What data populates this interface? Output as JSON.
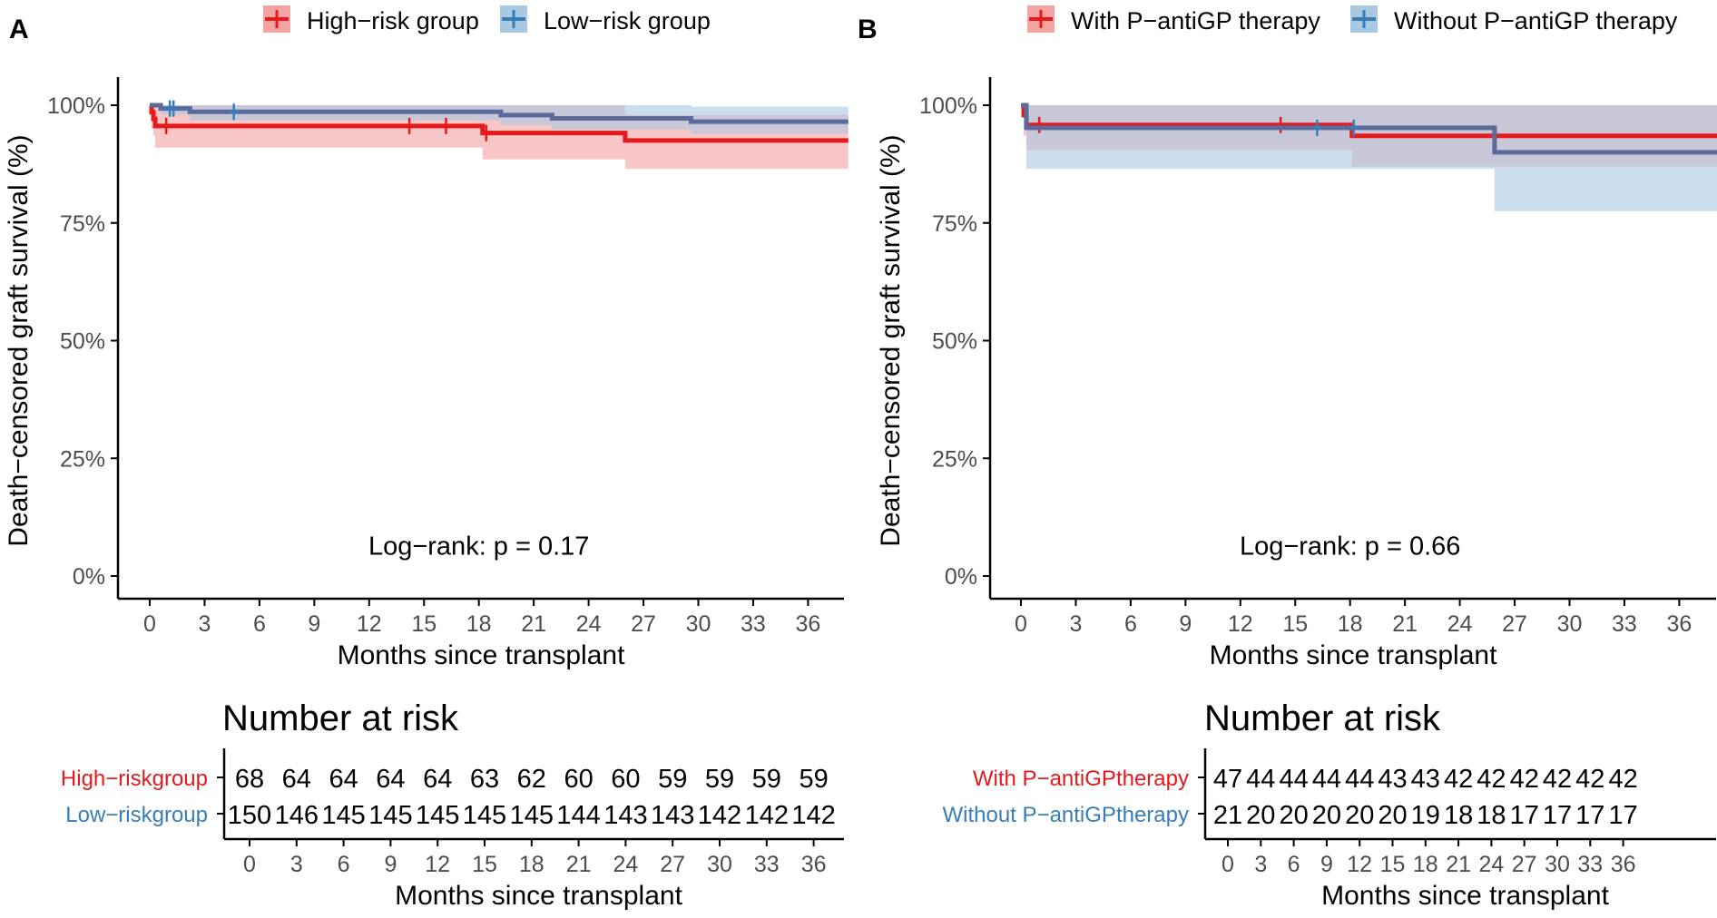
{
  "colors": {
    "group1_line": "#e41a1c",
    "group1_band": "#f4a3a3",
    "group2_line": "#5b6a9b",
    "group2_marker": "#377eb8",
    "group2_band": "#a9c8e2",
    "group2_label": "#377eb8",
    "axis": "#000000",
    "tick_text": "#4d4d4d"
  },
  "chart_data": [
    {
      "panel_label": "A",
      "type": "line",
      "subtype": "kaplan-meier step",
      "legend": [
        "High−risk group",
        "Low−risk group"
      ],
      "legend_position": "top",
      "ylabel": "Death−censored graft survival (%)",
      "xlabel": "Months since transplant",
      "xlim": [
        -2.3,
        38.5
      ],
      "ylim": [
        -0.04,
        1.02
      ],
      "x_ticks": [
        0,
        3,
        6,
        9,
        12,
        15,
        18,
        21,
        24,
        27,
        30,
        33,
        36
      ],
      "x_tick_labels": [
        "0",
        "3",
        "6",
        "9",
        "12",
        "15",
        "18",
        "21",
        "24",
        "27",
        "30",
        "33",
        "36"
      ],
      "y_ticks": [
        0,
        0.25,
        0.5,
        0.75,
        1.0
      ],
      "y_tick_labels": [
        "0%",
        "25%",
        "50%",
        "75%",
        "100%"
      ],
      "annotation": "Log−rank: p = 0.17",
      "annotation_pos": [
        18,
        0.065
      ],
      "series": [
        {
          "name": "High−risk group",
          "steps": [
            [
              0,
              1.0
            ],
            [
              0.1,
              0.985
            ],
            [
              0.2,
              0.971
            ],
            [
              0.3,
              0.956
            ],
            [
              18.2,
              0.941
            ],
            [
              26,
              0.925
            ],
            [
              38.2,
              0.925
            ]
          ],
          "ci_steps": [
            [
              0,
              1.0,
              1.0
            ],
            [
              0.1,
              1.0,
              0.95
            ],
            [
              0.2,
              1.0,
              0.935
            ],
            [
              0.3,
              1.0,
              0.91
            ],
            [
              18.2,
              1.0,
              0.885
            ],
            [
              26,
              0.98,
              0.865
            ],
            [
              38.2,
              0.98,
              0.865
            ]
          ],
          "censor": [
            0.9,
            14.2,
            16.2,
            18.4
          ]
        },
        {
          "name": "Low−risk group",
          "steps": [
            [
              0,
              1.0
            ],
            [
              0.6,
              0.993
            ],
            [
              2.2,
              0.986
            ],
            [
              19.2,
              0.979
            ],
            [
              22,
              0.972
            ],
            [
              29.6,
              0.965
            ],
            [
              38.2,
              0.965
            ]
          ],
          "ci_steps": [
            [
              0,
              1.0,
              1.0
            ],
            [
              0.6,
              1.0,
              0.98
            ],
            [
              2.2,
              1.0,
              0.968
            ],
            [
              19.2,
              1.0,
              0.958
            ],
            [
              22,
              1.0,
              0.948
            ],
            [
              29.6,
              0.997,
              0.94
            ],
            [
              38.2,
              0.997,
              0.94
            ]
          ],
          "censor": [
            1.1,
            1.3,
            4.6
          ]
        }
      ]
    },
    {
      "panel_label": "B",
      "type": "line",
      "subtype": "kaplan-meier step",
      "legend": [
        "With P−antiGP therapy",
        "Without P−antiGP therapy"
      ],
      "legend_position": "top",
      "ylabel": "Death−censored graft survival (%)",
      "xlabel": "Months since transplant",
      "xlim": [
        -2.3,
        38.5
      ],
      "ylim": [
        -0.04,
        1.02
      ],
      "x_ticks": [
        0,
        3,
        6,
        9,
        12,
        15,
        18,
        21,
        24,
        27,
        30,
        33,
        36
      ],
      "x_tick_labels": [
        "0",
        "3",
        "6",
        "9",
        "12",
        "15",
        "18",
        "21",
        "24",
        "27",
        "30",
        "33",
        "36"
      ],
      "y_ticks": [
        0,
        0.25,
        0.5,
        0.75,
        1.0
      ],
      "y_tick_labels": [
        "0%",
        "25%",
        "50%",
        "75%",
        "100%"
      ],
      "annotation": "Log−rank: p = 0.66",
      "annotation_pos": [
        18,
        0.065
      ],
      "series": [
        {
          "name": "With P−antiGP therapy",
          "steps": [
            [
              0,
              1.0
            ],
            [
              0.15,
              0.979
            ],
            [
              0.3,
              0.958
            ],
            [
              18.1,
              0.935
            ],
            [
              38.2,
              0.935
            ]
          ],
          "ci_steps": [
            [
              0,
              1.0,
              1.0
            ],
            [
              0.15,
              1.0,
              0.935
            ],
            [
              0.3,
              1.0,
              0.905
            ],
            [
              18.1,
              1.0,
              0.87
            ],
            [
              38.2,
              1.0,
              0.87
            ]
          ],
          "censor": [
            1.0,
            14.2
          ]
        },
        {
          "name": "Without P−antiGP therapy",
          "steps": [
            [
              0,
              1.0
            ],
            [
              0.3,
              0.952
            ],
            [
              25.9,
              0.9
            ],
            [
              38.2,
              0.9
            ]
          ],
          "ci_steps": [
            [
              0,
              1.0,
              1.0
            ],
            [
              0.3,
              1.0,
              0.865
            ],
            [
              25.9,
              1.0,
              0.775
            ],
            [
              38.2,
              1.0,
              0.775
            ]
          ],
          "censor": [
            16.2,
            18.2
          ]
        }
      ]
    }
  ],
  "risk_tables": [
    {
      "title": "Number at risk",
      "xlabel": "Months since transplant",
      "times": [
        0,
        3,
        6,
        9,
        12,
        15,
        18,
        21,
        24,
        27,
        30,
        33,
        36
      ],
      "rows": [
        {
          "label": "High−riskgroup",
          "values": [
            "68",
            "64",
            "64",
            "64",
            "64",
            "63",
            "62",
            "60",
            "60",
            "59",
            "59",
            "59",
            "59"
          ]
        },
        {
          "label": "Low−riskgroup",
          "values": [
            "150",
            "146",
            "145",
            "145",
            "145",
            "145",
            "145",
            "144",
            "143",
            "143",
            "142",
            "142",
            "142"
          ]
        }
      ]
    },
    {
      "title": "Number at risk",
      "xlabel": "Months since transplant",
      "times": [
        0,
        3,
        6,
        9,
        12,
        15,
        18,
        21,
        24,
        27,
        30,
        33,
        36
      ],
      "rows": [
        {
          "label": "With P−antiGPtherapy",
          "values": [
            "47",
            "44",
            "44",
            "44",
            "44",
            "43",
            "43",
            "42",
            "42",
            "42",
            "42",
            "42",
            "42"
          ]
        },
        {
          "label": "Without P−antiGPtherapy",
          "values": [
            "21",
            "20",
            "20",
            "20",
            "20",
            "20",
            "19",
            "18",
            "18",
            "17",
            "17",
            "17",
            "17"
          ]
        }
      ]
    }
  ]
}
